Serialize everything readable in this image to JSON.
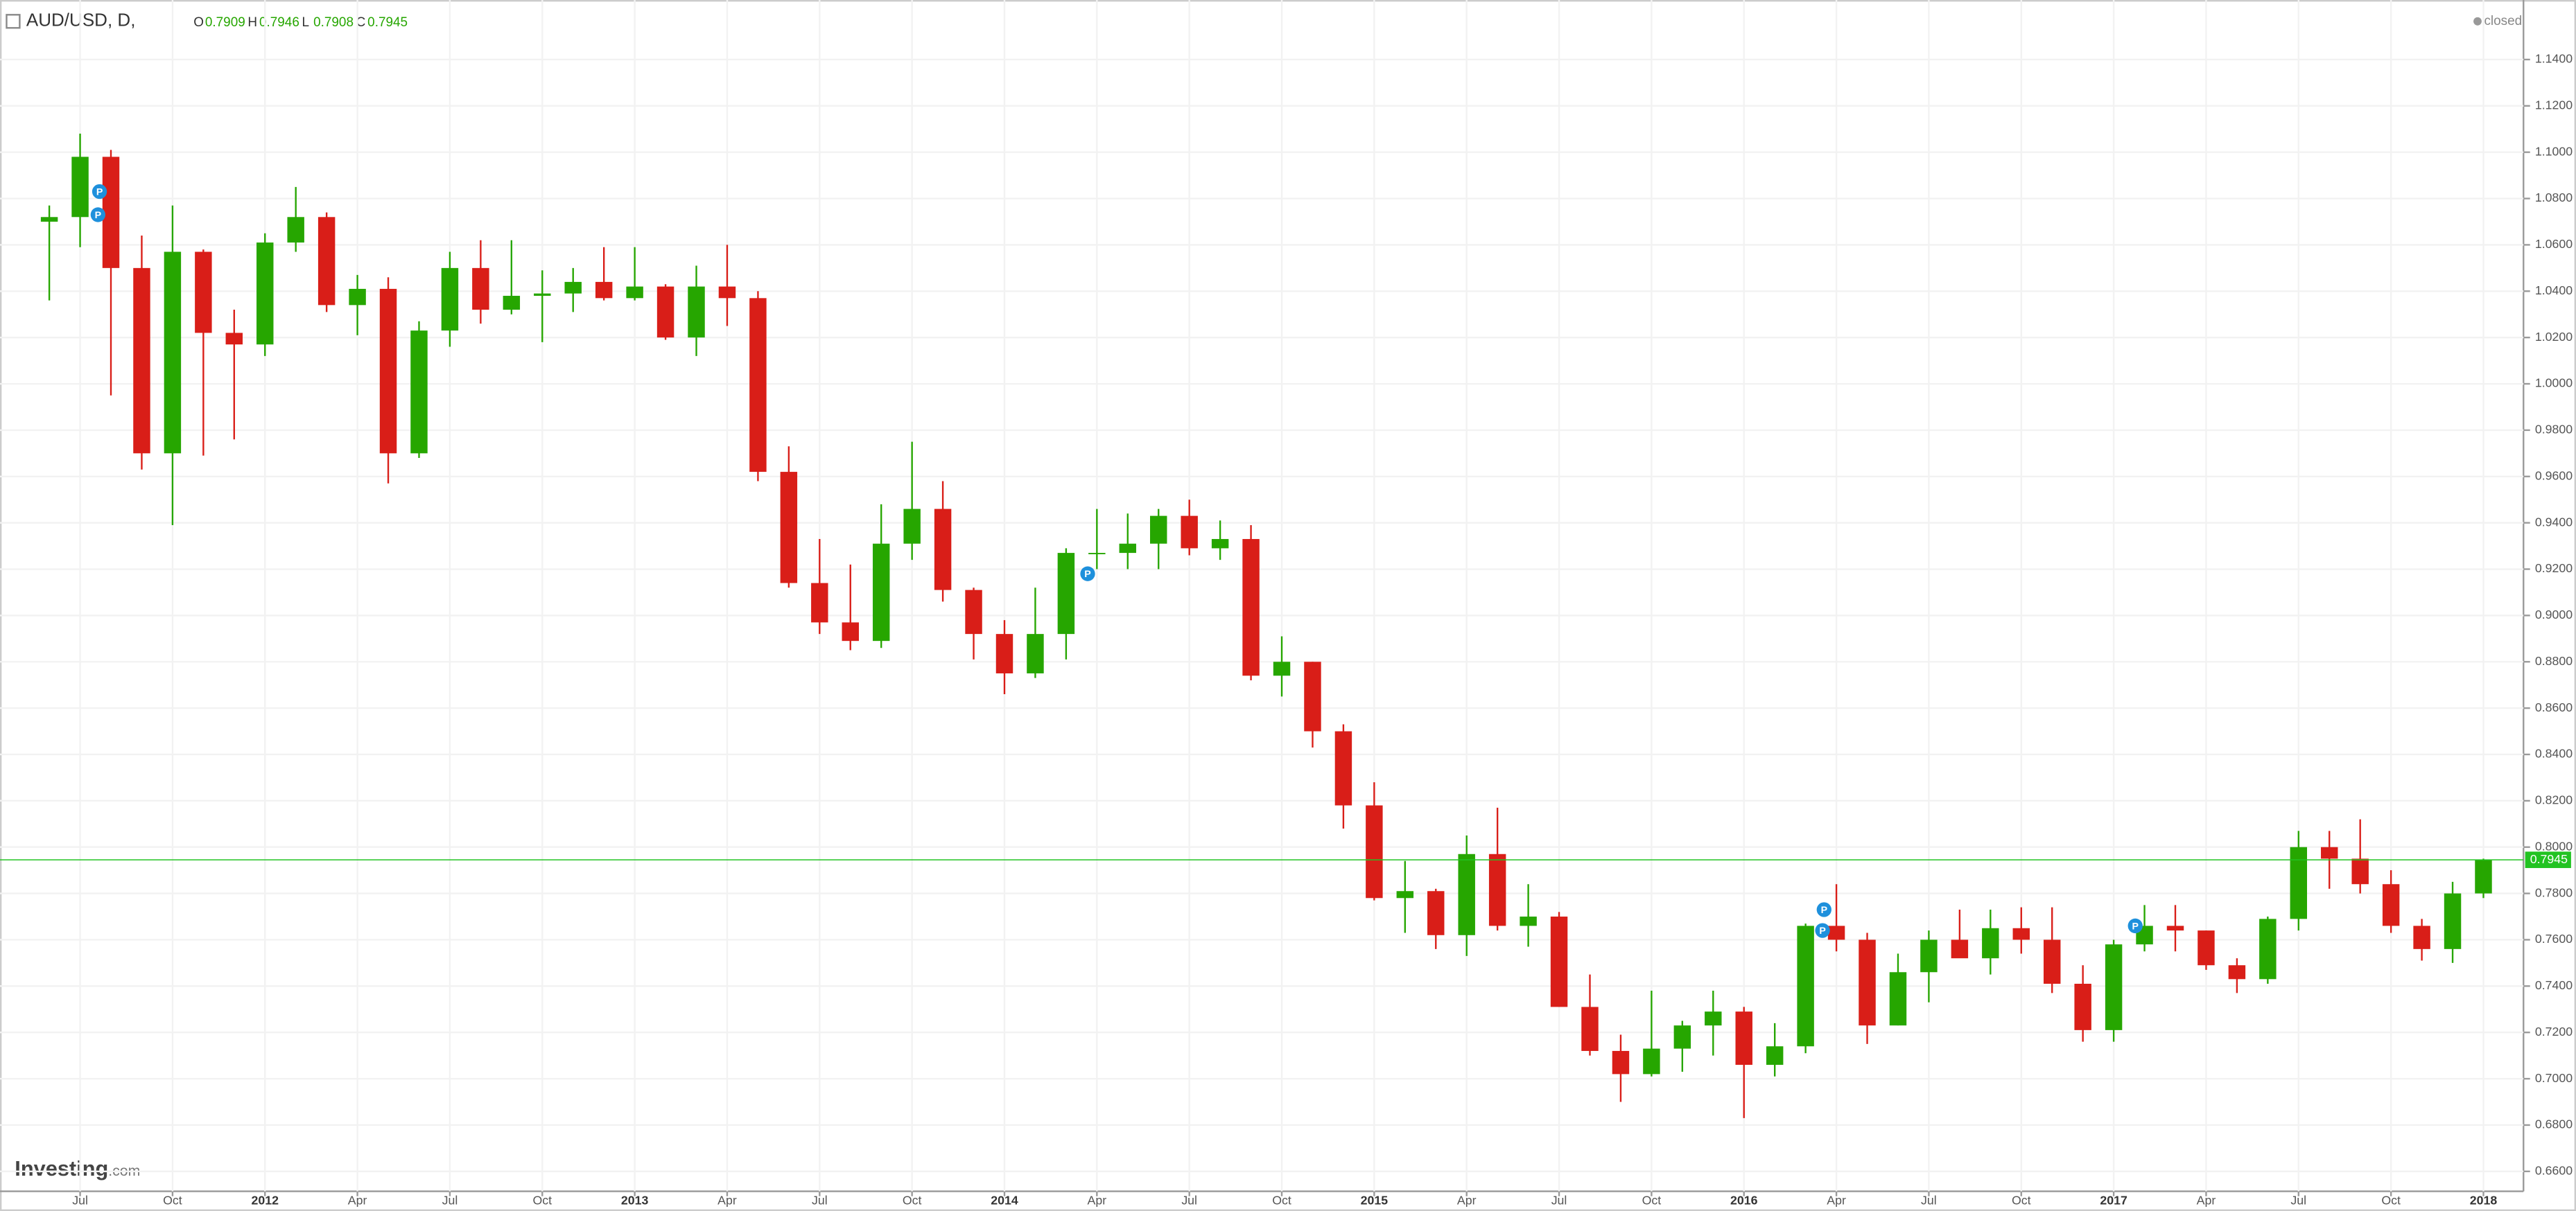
{
  "chart_data": {
    "type": "candlestick",
    "title": "AUD/USD, D,",
    "status": "closed",
    "legend": [
      {
        "label": "O",
        "value": 0.7909
      },
      {
        "label": "H",
        "value": 0.7946
      },
      {
        "label": "L",
        "value": 0.7908
      },
      {
        "label": "C",
        "value": 0.7945
      }
    ],
    "last_price": 0.7945,
    "up_color": "#26a600",
    "down_color": "#d91e18",
    "last_price_color": "#22c322",
    "grid": true,
    "open": [
      1.07,
      1.072,
      1.098,
      1.05,
      0.97,
      1.057,
      1.022,
      1.017,
      1.061,
      1.072,
      1.034,
      1.041,
      0.97,
      1.023,
      1.05,
      1.032,
      1.038,
      1.039,
      1.044,
      1.037,
      1.042,
      1.02,
      1.042,
      1.037,
      0.962,
      0.914,
      0.897,
      0.889,
      0.931,
      0.946,
      0.911,
      0.892,
      0.875,
      0.892,
      0.927,
      0.927,
      0.931,
      0.943,
      0.929,
      0.933,
      0.874,
      0.88,
      0.85,
      0.818,
      0.778,
      0.781,
      0.762,
      0.797,
      0.766,
      0.77,
      0.731,
      0.712,
      0.702,
      0.713,
      0.723,
      0.729,
      0.706,
      0.714,
      0.766,
      0.76,
      0.723,
      0.746,
      0.76,
      0.752,
      0.765,
      0.76,
      0.741,
      0.721,
      0.758,
      0.766,
      0.764,
      0.749,
      0.743,
      0.769,
      0.8,
      0.795,
      0.784,
      0.766,
      0.756,
      0.78
    ],
    "high": [
      1.077,
      1.108,
      1.101,
      1.064,
      1.077,
      1.058,
      1.032,
      1.065,
      1.085,
      1.074,
      1.047,
      1.046,
      1.027,
      1.057,
      1.062,
      1.062,
      1.049,
      1.05,
      1.059,
      1.059,
      1.043,
      1.051,
      1.06,
      1.04,
      0.973,
      0.933,
      0.922,
      0.948,
      0.975,
      0.958,
      0.912,
      0.898,
      0.912,
      0.929,
      0.946,
      0.944,
      0.946,
      0.95,
      0.941,
      0.939,
      0.891,
      0.88,
      0.853,
      0.828,
      0.794,
      0.782,
      0.805,
      0.817,
      0.784,
      0.772,
      0.745,
      0.719,
      0.738,
      0.725,
      0.738,
      0.731,
      0.724,
      0.767,
      0.784,
      0.763,
      0.754,
      0.764,
      0.773,
      0.773,
      0.774,
      0.774,
      0.749,
      0.76,
      0.775,
      0.775,
      0.764,
      0.752,
      0.77,
      0.807,
      0.807,
      0.812,
      0.79,
      0.769,
      0.785,
      0.795
    ],
    "low": [
      1.036,
      1.059,
      0.995,
      0.963,
      0.939,
      0.969,
      0.976,
      1.012,
      1.057,
      1.031,
      1.021,
      0.957,
      0.968,
      1.016,
      1.026,
      1.03,
      1.018,
      1.031,
      1.036,
      1.036,
      1.019,
      1.012,
      1.025,
      0.958,
      0.912,
      0.892,
      0.885,
      0.886,
      0.924,
      0.906,
      0.881,
      0.866,
      0.873,
      0.881,
      0.92,
      0.92,
      0.92,
      0.926,
      0.924,
      0.872,
      0.865,
      0.843,
      0.808,
      0.777,
      0.763,
      0.756,
      0.753,
      0.764,
      0.757,
      0.731,
      0.71,
      0.69,
      0.701,
      0.703,
      0.71,
      0.683,
      0.701,
      0.711,
      0.755,
      0.715,
      0.723,
      0.733,
      0.753,
      0.745,
      0.754,
      0.737,
      0.716,
      0.716,
      0.755,
      0.755,
      0.747,
      0.737,
      0.741,
      0.764,
      0.782,
      0.78,
      0.763,
      0.751,
      0.75,
      0.778
    ],
    "close": [
      1.072,
      1.098,
      1.05,
      0.97,
      1.057,
      1.022,
      1.017,
      1.061,
      1.072,
      1.034,
      1.041,
      0.97,
      1.023,
      1.05,
      1.032,
      1.038,
      1.039,
      1.044,
      1.037,
      1.042,
      1.02,
      1.042,
      1.037,
      0.962,
      0.914,
      0.897,
      0.889,
      0.931,
      0.946,
      0.911,
      0.892,
      0.875,
      0.892,
      0.927,
      0.927,
      0.931,
      0.943,
      0.929,
      0.933,
      0.874,
      0.88,
      0.85,
      0.818,
      0.778,
      0.781,
      0.762,
      0.797,
      0.766,
      0.77,
      0.731,
      0.712,
      0.702,
      0.713,
      0.723,
      0.729,
      0.706,
      0.714,
      0.766,
      0.76,
      0.723,
      0.746,
      0.76,
      0.752,
      0.765,
      0.76,
      0.741,
      0.721,
      0.758,
      0.766,
      0.764,
      0.749,
      0.743,
      0.769,
      0.8,
      0.795,
      0.784,
      0.766,
      0.756,
      0.78,
      0.7945
    ],
    "xlim": [
      -1.6,
      80.3
    ],
    "xticks": [
      {
        "value": 1,
        "label": "Jul"
      },
      {
        "value": 4,
        "label": "Oct"
      },
      {
        "value": 7,
        "label": "2012"
      },
      {
        "value": 10,
        "label": "Apr"
      },
      {
        "value": 13,
        "label": "Jul"
      },
      {
        "value": 16,
        "label": "Oct"
      },
      {
        "value": 19,
        "label": "2013"
      },
      {
        "value": 22,
        "label": "Apr"
      },
      {
        "value": 25,
        "label": "Jul"
      },
      {
        "value": 28,
        "label": "Oct"
      },
      {
        "value": 31,
        "label": "2014"
      },
      {
        "value": 34,
        "label": "Apr"
      },
      {
        "value": 37,
        "label": "Jul"
      },
      {
        "value": 40,
        "label": "Oct"
      },
      {
        "value": 43,
        "label": "2015"
      },
      {
        "value": 46,
        "label": "Apr"
      },
      {
        "value": 49,
        "label": "Jul"
      },
      {
        "value": 52,
        "label": "Oct"
      },
      {
        "value": 55,
        "label": "2016"
      },
      {
        "value": 58,
        "label": "Apr"
      },
      {
        "value": 61,
        "label": "Jul"
      },
      {
        "value": 64,
        "label": "Oct"
      },
      {
        "value": 67,
        "label": "2017"
      },
      {
        "value": 70,
        "label": "Apr"
      },
      {
        "value": 73,
        "label": "Jul"
      },
      {
        "value": 76,
        "label": "Oct"
      },
      {
        "value": 79,
        "label": "2018"
      }
    ],
    "ylim": [
      0.6514,
      1.1487
    ],
    "yticks": [
      {
        "value": 0.66,
        "label": "0.6600"
      },
      {
        "value": 0.68,
        "label": "0.6800"
      },
      {
        "value": 0.7,
        "label": "0.7000"
      },
      {
        "value": 0.72,
        "label": "0.7200"
      },
      {
        "value": 0.74,
        "label": "0.7400"
      },
      {
        "value": 0.76,
        "label": "0.7600"
      },
      {
        "value": 0.78,
        "label": "0.7800"
      },
      {
        "value": 0.8,
        "label": "0.8000"
      },
      {
        "value": 0.82,
        "label": "0.8200"
      },
      {
        "value": 0.84,
        "label": "0.8400"
      },
      {
        "value": 0.86,
        "label": "0.8600"
      },
      {
        "value": 0.88,
        "label": "0.8800"
      },
      {
        "value": 0.9,
        "label": "0.9000"
      },
      {
        "value": 0.92,
        "label": "0.9200"
      },
      {
        "value": 0.94,
        "label": "0.9400"
      },
      {
        "value": 0.96,
        "label": "0.9600"
      },
      {
        "value": 0.98,
        "label": "0.9800"
      },
      {
        "value": 1,
        "label": "1.0000"
      },
      {
        "value": 1.02,
        "label": "1.0200"
      },
      {
        "value": 1.04,
        "label": "1.0400"
      },
      {
        "value": 1.06,
        "label": "1.0600"
      },
      {
        "value": 1.08,
        "label": "1.0800"
      },
      {
        "value": 1.1,
        "label": "1.1000"
      },
      {
        "value": 1.12,
        "label": "1.1200"
      },
      {
        "value": 1.14,
        "label": "1.1400"
      }
    ],
    "annotations": [
      {
        "label": "P",
        "x": 1.63,
        "y": 1.083
      },
      {
        "label": "P",
        "x": 1.58,
        "y": 1.073
      },
      {
        "label": "P",
        "x": 33.7,
        "y": 0.918
      },
      {
        "label": "P",
        "x": 57.6,
        "y": 0.773
      },
      {
        "label": "P",
        "x": 57.55,
        "y": 0.764
      },
      {
        "label": "P",
        "x": 67.7,
        "y": 0.766
      }
    ]
  },
  "branding": {
    "name": "Investing",
    "suffix": ".com"
  }
}
